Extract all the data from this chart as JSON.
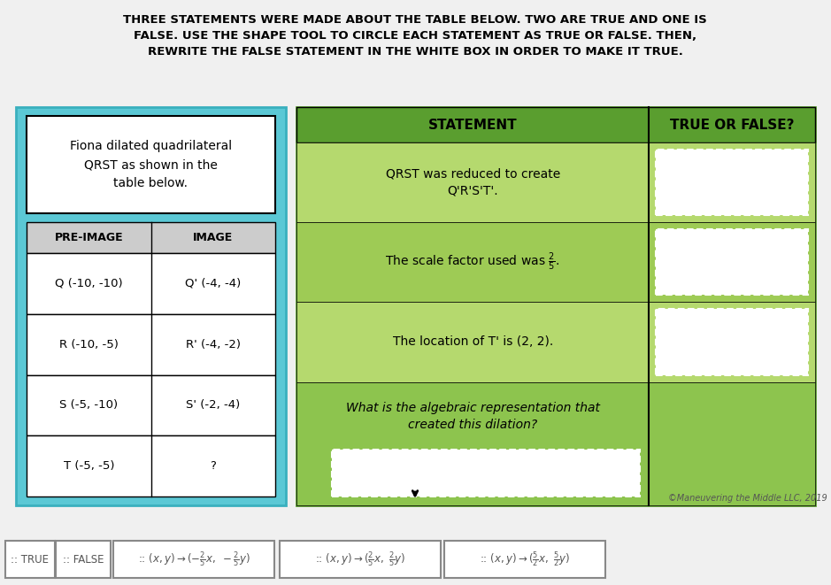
{
  "title_line1": "THREE STATEMENTS WERE MADE ABOUT THE TABLE BELOW. TWO ARE TRUE AND ONE IS",
  "title_line2": "FALSE. USE THE SHAPE TOOL TO CIRCLE EACH STATEMENT AS TRUE OR FALSE. THEN,",
  "title_line3": "REWRITE THE FALSE STATEMENT IN THE WHITE BOX IN ORDER TO MAKE IT TRUE.",
  "bg_color": "#f0f0f0",
  "left_panel_bg": "#5bc8d5",
  "right_panel_bg": "#8dc44e",
  "header_row_bg": "#5a9e2f",
  "white_box_color": "#ffffff",
  "dashed_box_color": "#ffffff",
  "pre_image_header": "PRE-IMAGE",
  "image_header": "IMAGE",
  "description": "Fiona dilated quadrilateral\nQRST as shown in the\ntable below.",
  "pre_image_data": [
    "Q (-10, -10)",
    "R (-10, -5)",
    "S (-5, -10)",
    "T (-5, -5)"
  ],
  "image_data": [
    "Q' (-4, -4)",
    "R' (-4, -2)",
    "S' (-2, -4)",
    "?"
  ],
  "statement_header": "STATEMENT",
  "true_false_header": "TRUE OR FALSE?",
  "statements": [
    "QRST was reduced to create\nQ'R'S'T'.",
    "The scale factor used was ₂₅.",
    "The location of T' is (2, 2)."
  ],
  "statements_math": [
    "QRST was reduced to create\nQ’R’S’T’.",
    "The scale factor used was 2/5.",
    "The location of T’ is (2, 2)."
  ],
  "algebraic_question": "What is the algebraic representation that\ncreated this dilation?",
  "copyright": "©Maneuvering the Middle LLC, 2019",
  "bottom_labels": [
    ":: TRUE",
    ":: FALSE",
    ":: (x, y) → (−2/5 x, −2/5 y)",
    ":: (x, y) → (2/5 x, 2/5 y)",
    ":: (x, y) → (5/2 x, 5/2 y)"
  ]
}
